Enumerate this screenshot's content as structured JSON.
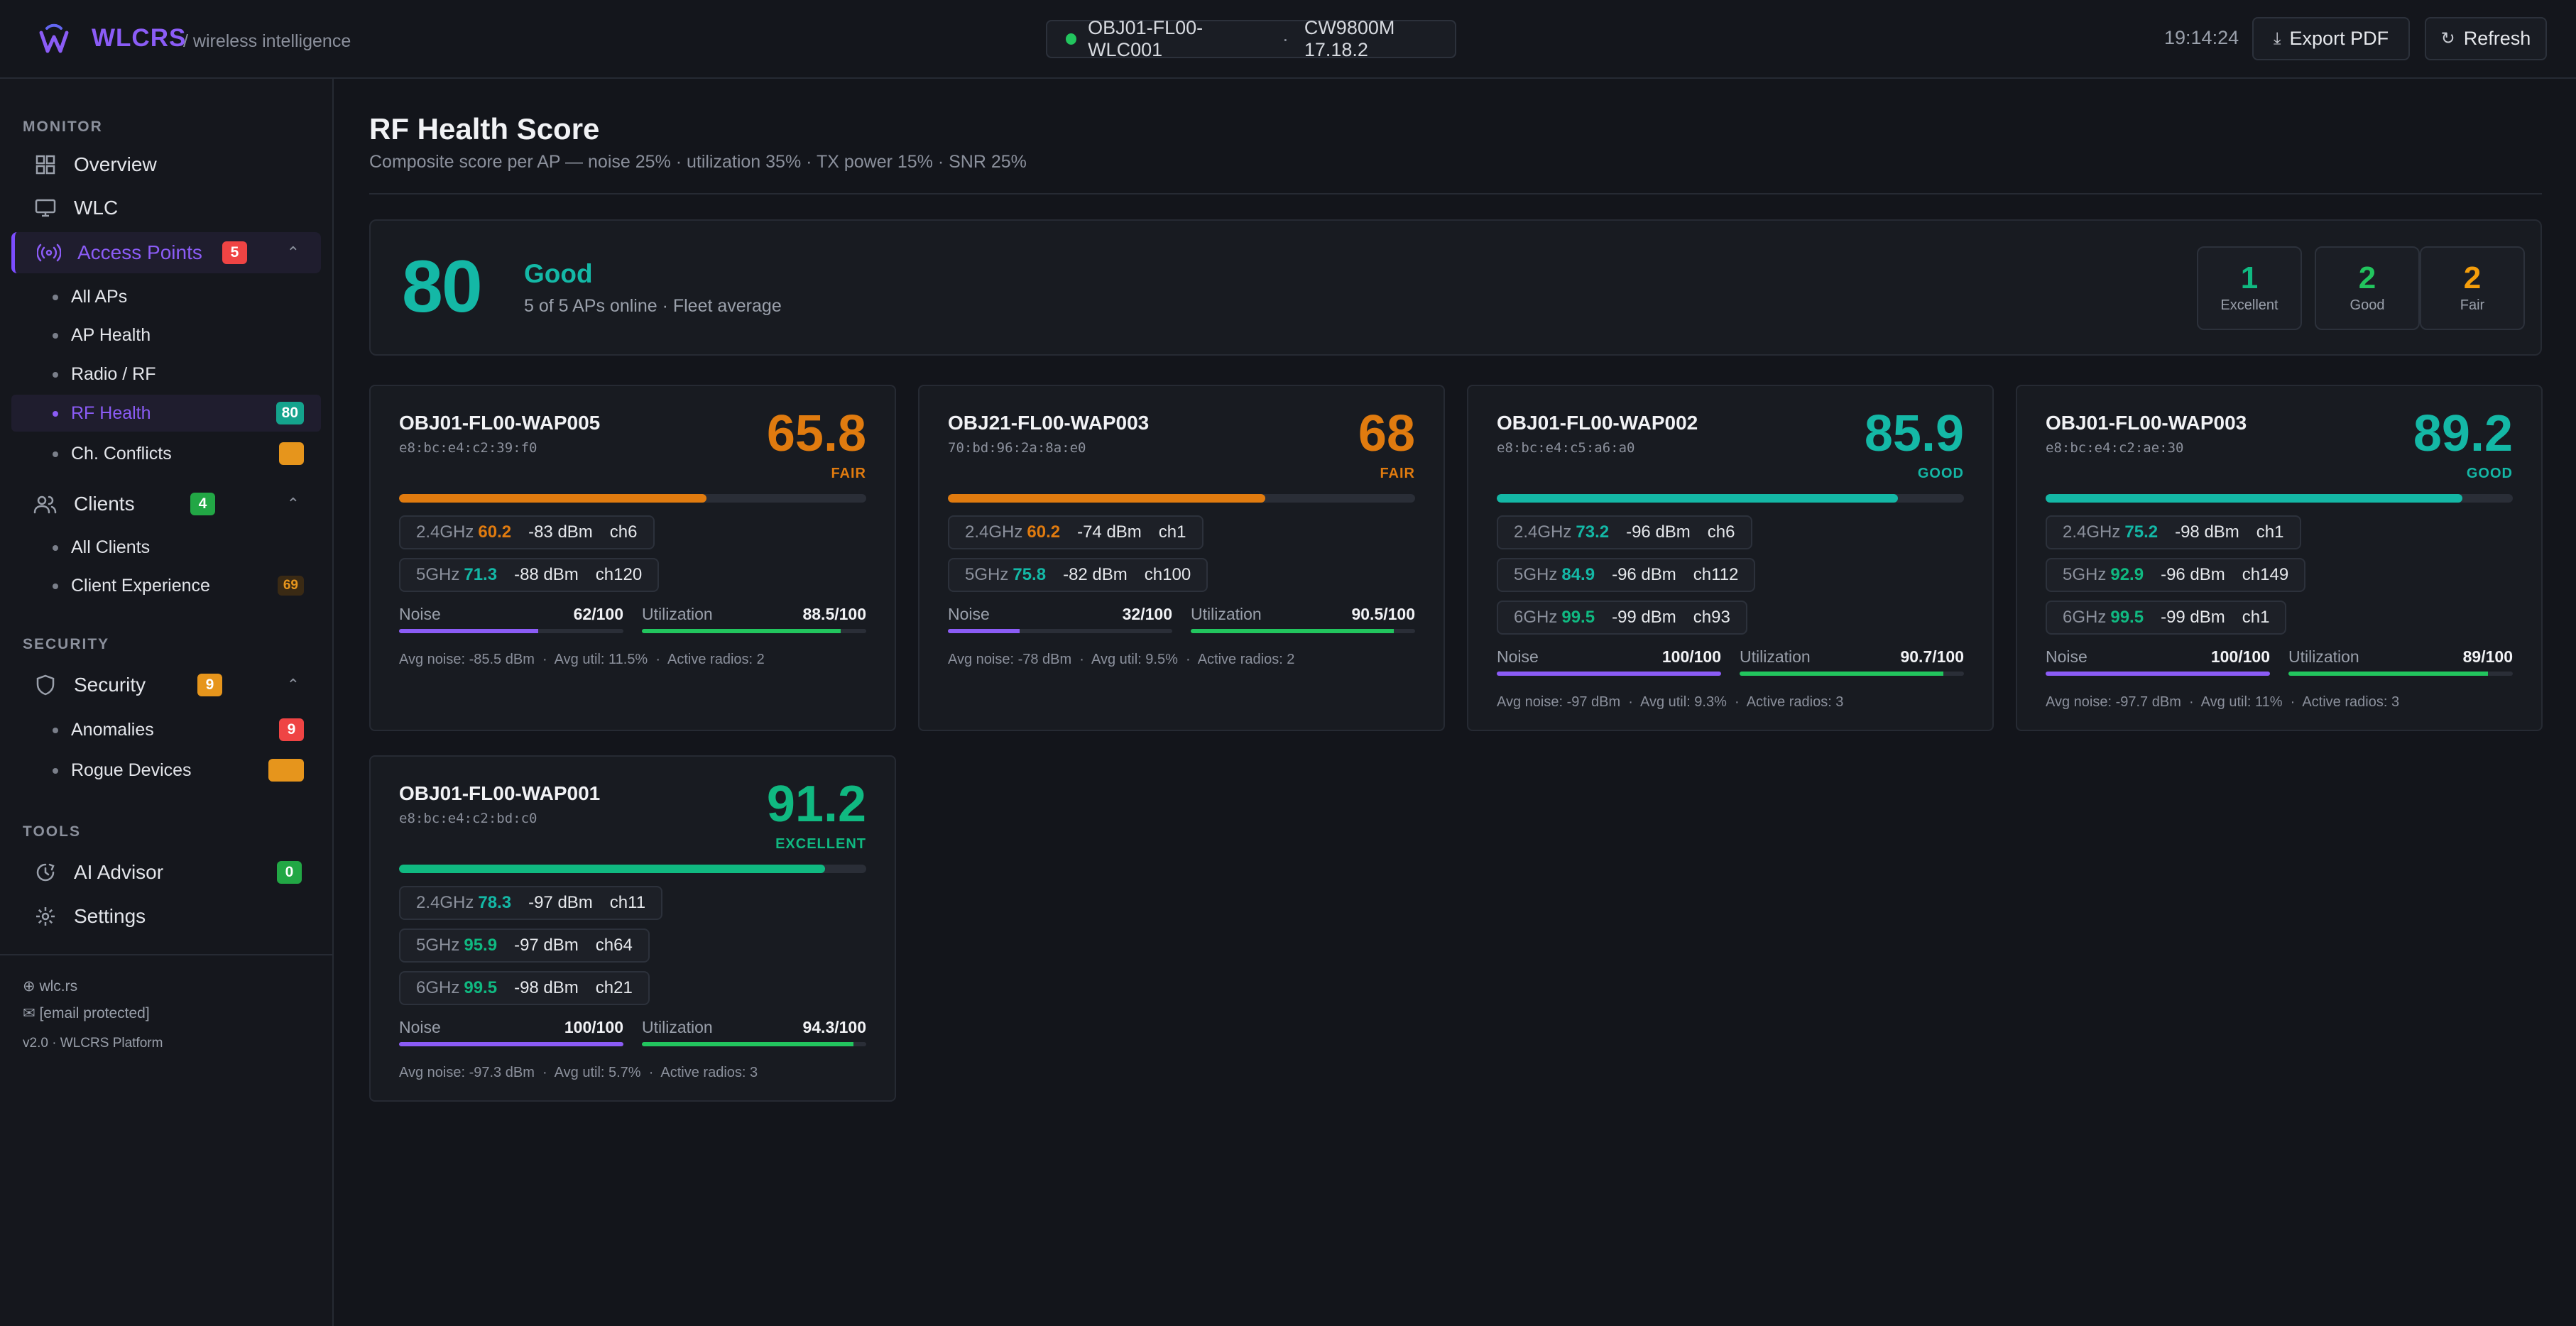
{
  "header": {
    "brand": "WLCRS",
    "brand_sub": "/ wireless intelligence",
    "controller": "OBJ01-FL00-WLC001",
    "separator": "·",
    "model": "CW9800M 17.18.2",
    "time": "19:14:24",
    "export_label": "Export PDF",
    "refresh_label": "Refresh"
  },
  "sidebar": {
    "monitor_title": "MONITOR",
    "overview": "Overview",
    "wlc": "WLC",
    "access_points": "Access Points",
    "access_points_badge": "5",
    "all_aps": "All APs",
    "ap_health": "AP Health",
    "radio_rf": "Radio / RF",
    "rf_health": "RF Health",
    "rf_health_badge": "80",
    "ch_conflicts": "Ch. Conflicts",
    "clients": "Clients",
    "clients_badge": "4",
    "all_clients": "All Clients",
    "client_experience": "Client Experience",
    "client_experience_badge": "69",
    "security_title": "SECURITY",
    "security": "Security",
    "security_badge": "9",
    "anomalies": "Anomalies",
    "anomalies_badge": "9",
    "rogue_devices": "Rogue Devices",
    "tools_title": "TOOLS",
    "ai_advisor": "AI Advisor",
    "ai_advisor_badge": "0",
    "settings": "Settings",
    "footer_site": "wlc.rs",
    "footer_email": "[email protected]",
    "footer_version": "v2.0 · WLCRS Platform"
  },
  "main": {
    "title": "RF Health Score",
    "subtitle": "Composite score per AP — noise 25% · utilization 35% · TX power 15% · SNR 25%"
  },
  "summary": {
    "score": "80",
    "label": "Good",
    "sub": "5 of 5 APs online · Fleet average",
    "tiles": [
      {
        "n": "1",
        "l": "Excellent"
      },
      {
        "n": "2",
        "l": "Good"
      },
      {
        "n": "2",
        "l": "Fair"
      }
    ]
  },
  "colors": {
    "fair": "#e07b0f",
    "good": "#14b8a6",
    "excellent": "#10b981",
    "accent": "#8b5cf6",
    "noise_bar": "#8b5cf6",
    "util_bar": "#22c55e"
  },
  "aps": [
    {
      "name": "OBJ01-FL00-WAP005",
      "mac": "e8:bc:e4:c2:39:f0",
      "score": "65.8",
      "grade": "FAIR",
      "score_frac": 0.658,
      "radios": [
        {
          "band": "2.4GHz",
          "rs": "60.2",
          "dbm": "-83 dBm",
          "ch": "ch6"
        },
        {
          "band": "5GHz",
          "rs": "71.3",
          "dbm": "-88 dBm",
          "ch": "ch120"
        }
      ],
      "noise_label": "Noise",
      "noise": "62/100",
      "noise_frac": 0.62,
      "util_label": "Utilization",
      "util": "88.5/100",
      "util_frac": 0.885,
      "avg_noise": "Avg noise: -85.5 dBm",
      "avg_util": "Avg util: 11.5%",
      "active_radios": "Active radios: 2"
    },
    {
      "name": "OBJ21-FL00-WAP003",
      "mac": "70:bd:96:2a:8a:e0",
      "score": "68",
      "grade": "FAIR",
      "score_frac": 0.68,
      "radios": [
        {
          "band": "2.4GHz",
          "rs": "60.2",
          "dbm": "-74 dBm",
          "ch": "ch1"
        },
        {
          "band": "5GHz",
          "rs": "75.8",
          "dbm": "-82 dBm",
          "ch": "ch100"
        }
      ],
      "noise_label": "Noise",
      "noise": "32/100",
      "noise_frac": 0.32,
      "util_label": "Utilization",
      "util": "90.5/100",
      "util_frac": 0.905,
      "avg_noise": "Avg noise: -78 dBm",
      "avg_util": "Avg util: 9.5%",
      "active_radios": "Active radios: 2"
    },
    {
      "name": "OBJ01-FL00-WAP002",
      "mac": "e8:bc:e4:c5:a6:a0",
      "score": "85.9",
      "grade": "GOOD",
      "score_frac": 0.859,
      "radios": [
        {
          "band": "2.4GHz",
          "rs": "73.2",
          "dbm": "-96 dBm",
          "ch": "ch6"
        },
        {
          "band": "5GHz",
          "rs": "84.9",
          "dbm": "-96 dBm",
          "ch": "ch112"
        },
        {
          "band": "6GHz",
          "rs": "99.5",
          "dbm": "-99 dBm",
          "ch": "ch93"
        }
      ],
      "noise_label": "Noise",
      "noise": "100/100",
      "noise_frac": 1.0,
      "util_label": "Utilization",
      "util": "90.7/100",
      "util_frac": 0.907,
      "avg_noise": "Avg noise: -97 dBm",
      "avg_util": "Avg util: 9.3%",
      "active_radios": "Active radios: 3"
    },
    {
      "name": "OBJ01-FL00-WAP003",
      "mac": "e8:bc:e4:c2:ae:30",
      "score": "89.2",
      "grade": "GOOD",
      "score_frac": 0.892,
      "radios": [
        {
          "band": "2.4GHz",
          "rs": "75.2",
          "dbm": "-98 dBm",
          "ch": "ch1"
        },
        {
          "band": "5GHz",
          "rs": "92.9",
          "dbm": "-96 dBm",
          "ch": "ch149"
        },
        {
          "band": "6GHz",
          "rs": "99.5",
          "dbm": "-99 dBm",
          "ch": "ch1"
        }
      ],
      "noise_label": "Noise",
      "noise": "100/100",
      "noise_frac": 1.0,
      "util_label": "Utilization",
      "util": "89/100",
      "util_frac": 0.89,
      "avg_noise": "Avg noise: -97.7 dBm",
      "avg_util": "Avg util: 11%",
      "active_radios": "Active radios: 3"
    },
    {
      "name": "OBJ01-FL00-WAP001",
      "mac": "e8:bc:e4:c2:bd:c0",
      "score": "91.2",
      "grade": "EXCELLENT",
      "score_frac": 0.912,
      "radios": [
        {
          "band": "2.4GHz",
          "rs": "78.3",
          "dbm": "-97 dBm",
          "ch": "ch11"
        },
        {
          "band": "5GHz",
          "rs": "95.9",
          "dbm": "-97 dBm",
          "ch": "ch64"
        },
        {
          "band": "6GHz",
          "rs": "99.5",
          "dbm": "-98 dBm",
          "ch": "ch21"
        }
      ],
      "noise_label": "Noise",
      "noise": "100/100",
      "noise_frac": 1.0,
      "util_label": "Utilization",
      "util": "94.3/100",
      "util_frac": 0.943,
      "avg_noise": "Avg noise: -97.3 dBm",
      "avg_util": "Avg util: 5.7%",
      "active_radios": "Active radios: 3"
    }
  ]
}
